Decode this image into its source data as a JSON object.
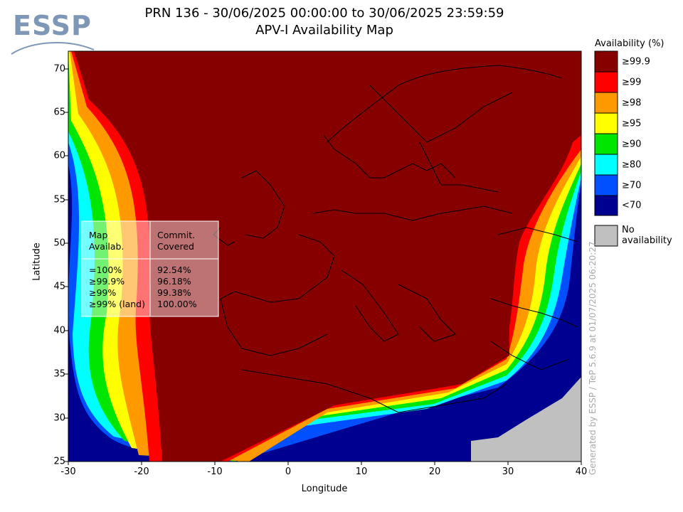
{
  "header": {
    "logo": "ESSP",
    "title_line1": "PRN 136 - 30/06/2025 00:00:00 to 30/06/2025 23:59:59",
    "title_line2": "APV-I Availability Map"
  },
  "axes": {
    "xlabel": "Longitude",
    "ylabel": "Latitude",
    "x_ticks": [
      "-30",
      "-20",
      "-10",
      "0",
      "10",
      "20",
      "30",
      "40"
    ],
    "y_ticks": [
      "70",
      "65",
      "60",
      "55",
      "50",
      "45",
      "40",
      "35",
      "30",
      "25"
    ],
    "xlim": [
      -30,
      40
    ],
    "ylim": [
      25,
      72
    ]
  },
  "legend": {
    "title": "Availability (%)",
    "items": [
      {
        "label": "≥99.9",
        "color": "#870000"
      },
      {
        "label": "≥99",
        "color": "#ff0000"
      },
      {
        "label": "≥98",
        "color": "#ff9900"
      },
      {
        "label": "≥95",
        "color": "#ffff00"
      },
      {
        "label": "≥90",
        "color": "#00e600"
      },
      {
        "label": "≥80",
        "color": "#00ffff"
      },
      {
        "label": "≥70",
        "color": "#0050ff"
      },
      {
        "label": "<70",
        "color": "#000090"
      }
    ],
    "no_availability": {
      "label": "No availability",
      "color": "#c0c0c0"
    }
  },
  "stats_table": {
    "col1_header": "Map\nAvailab.",
    "col2_header": "Commit.\nCovered",
    "col1_header_l1": "Map",
    "col1_header_l2": "Availab.",
    "col2_header_l1": "Commit.",
    "col2_header_l2": "Covered",
    "rows": [
      {
        "avail": "=100%",
        "covered": "92.54%"
      },
      {
        "avail": "≥99.9%",
        "covered": "96.18%"
      },
      {
        "avail": "≥99%",
        "covered": "99.38%"
      },
      {
        "avail": "≥99% (land)",
        "covered": "100.00%"
      }
    ]
  },
  "credit": "Generated by ESSP / TeP 5.6.9 at 01/07/2025 06:20:27"
}
